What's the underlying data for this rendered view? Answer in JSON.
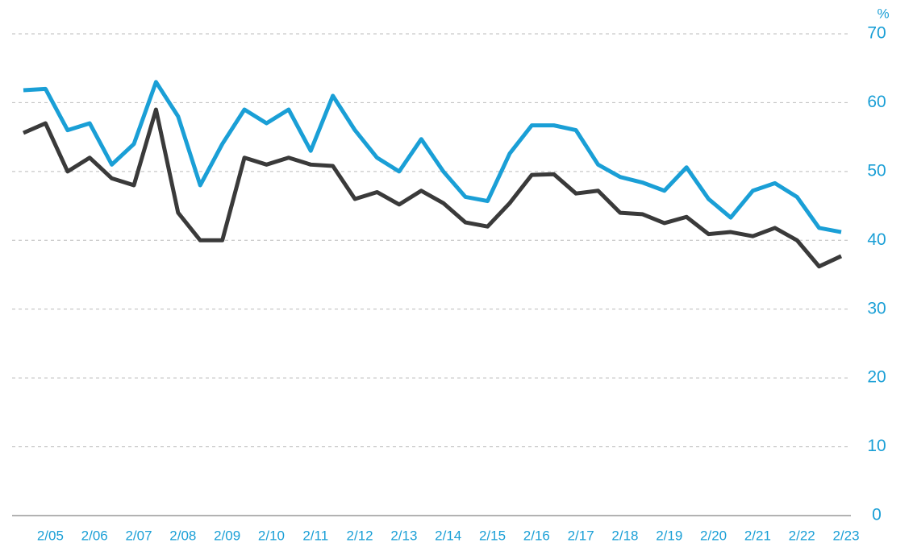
{
  "chart_data": {
    "type": "line",
    "y_unit": "%",
    "categories": [
      null,
      "2/05",
      null,
      "2/06",
      null,
      "2/07",
      null,
      "2/08",
      null,
      "2/09",
      null,
      "2/10",
      null,
      "2/11",
      null,
      "2/12",
      null,
      "2/13",
      null,
      "2/14",
      null,
      "2/15",
      null,
      "2/16",
      null,
      "2/17",
      null,
      "2/18",
      null,
      "2/19",
      null,
      "2/20",
      null,
      "2/21",
      null,
      "2/22",
      null,
      "2/23"
    ],
    "series": [
      {
        "color": "#1a9fd6",
        "values": [
          61.8,
          62,
          56,
          57,
          51,
          54,
          63,
          58,
          48,
          54,
          59,
          57,
          59,
          53,
          61,
          56,
          52,
          50,
          54.7,
          50,
          46.3,
          45.7,
          52.6,
          56.7,
          56.7,
          56,
          51,
          49.2,
          48.4,
          47.2,
          50.6,
          46,
          43.3,
          47.2,
          48.3,
          46.3,
          41.8,
          41.2
        ]
      },
      {
        "color": "#3a3a3a",
        "values": [
          55.6,
          57,
          50,
          52,
          49,
          48,
          59,
          44,
          40,
          40,
          52,
          51,
          52,
          51,
          50.8,
          46,
          47,
          45.2,
          47.2,
          45.4,
          42.6,
          42,
          45.4,
          49.5,
          49.6,
          46.8,
          47.2,
          44,
          43.8,
          42.5,
          43.4,
          40.9,
          41.2,
          40.6,
          41.8,
          40,
          36.2,
          37.7
        ]
      }
    ],
    "ylim": [
      0,
      70
    ],
    "yticks": [
      0,
      10,
      20,
      30,
      40,
      50,
      60,
      70
    ],
    "grid": true
  }
}
